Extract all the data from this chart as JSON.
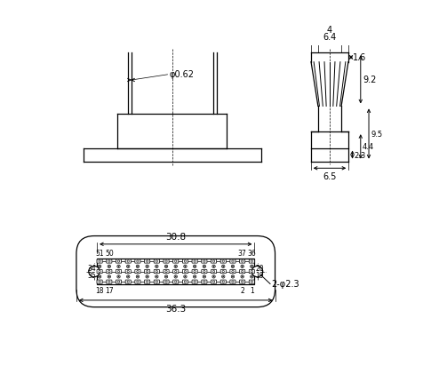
{
  "bg_color": "#ffffff",
  "line_color": "#000000",
  "figsize": [
    4.94,
    4.31
  ],
  "dpi": 100,
  "dims": {
    "phi_062": "φ0.62",
    "d308": "30.8",
    "d363": "36.3",
    "d64": "6.4",
    "d4": "4",
    "d16": "1.6",
    "d92": "9.2",
    "d23": "2.3",
    "d44": "4.4",
    "d95": "9.5",
    "d65": "6.5",
    "phi23": "2-φ2.3"
  }
}
